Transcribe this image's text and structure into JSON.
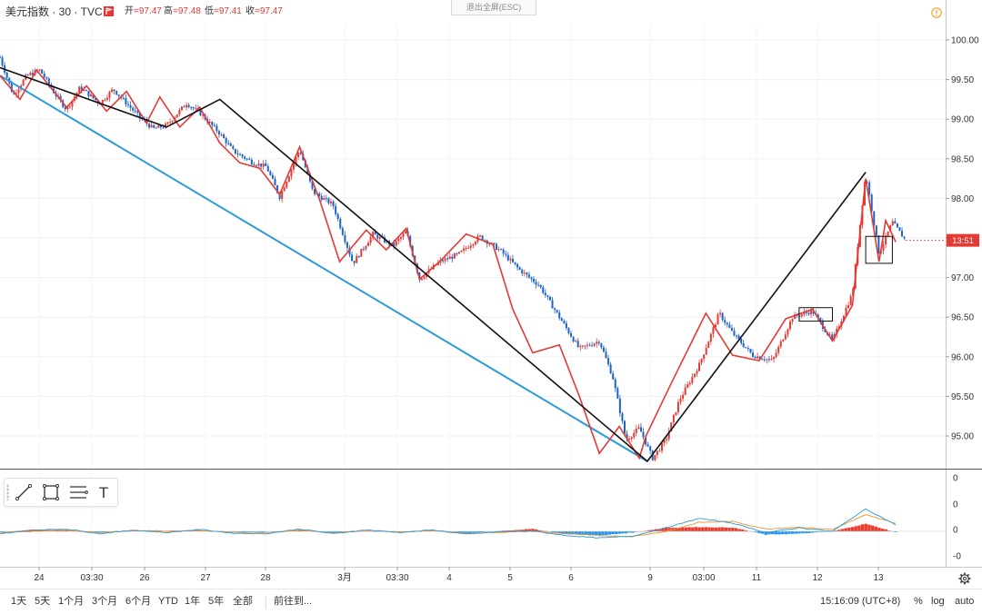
{
  "header": {
    "title": "美元指数 · 30 · TVC",
    "open_label": "开",
    "open_value": "=97.47",
    "high_label": "高",
    "high_value": "=97.48",
    "low_label": "低",
    "low_value": "=97.41",
    "close_label": "收",
    "close_value": "=97.47",
    "exit_fullscreen": "退出全屏(ESC)"
  },
  "colors": {
    "up": "#e53935",
    "down": "#1e63c6",
    "trend": "#111111",
    "channel": "#2a9ad8",
    "macd_pos": "#ef3b2c",
    "macd_neg": "#2196f3"
  },
  "price_label": "13:51",
  "chart_data": {
    "type": "line",
    "title": "",
    "x_ticks": [
      "24",
      "03:30",
      "26",
      "27",
      "28",
      "3月",
      "03:30",
      "4",
      "5",
      "6",
      "9",
      "03:00",
      "11",
      "12",
      "13"
    ],
    "y_ticks": [
      "100.00",
      "99.50",
      "99.00",
      "98.50",
      "98.00",
      "97.50",
      "97.00",
      "96.50",
      "96.00",
      "95.50",
      "95.00"
    ],
    "ylim": [
      94.6,
      100.3
    ],
    "price_series": {
      "x": [
        0,
        0.2,
        0.4,
        0.6,
        0.8,
        1.0,
        1.2,
        1.5,
        1.7,
        2.1,
        2.3,
        2.5,
        2.8,
        3.0,
        3.3,
        3.5,
        3.8,
        4.0,
        4.2,
        4.5,
        4.7,
        5.0,
        5.3,
        5.6,
        5.9,
        6.1,
        6.3,
        6.6,
        6.9,
        7.2,
        7.5,
        7.8,
        8.1,
        8.4,
        8.7,
        9.0,
        9.2,
        9.4,
        9.6,
        9.8,
        10.0,
        10.2,
        10.5,
        10.8,
        11.0,
        11.3,
        11.6,
        11.9,
        12.2,
        12.5,
        12.8,
        13.0,
        13.2,
        13.4,
        13.6
      ],
      "y": [
        99.78,
        99.3,
        99.55,
        99.62,
        99.35,
        99.12,
        99.4,
        99.2,
        99.38,
        99.02,
        98.88,
        98.92,
        99.2,
        99.08,
        98.82,
        98.6,
        98.45,
        98.4,
        98.02,
        98.62,
        98.08,
        97.92,
        97.18,
        97.55,
        97.4,
        97.58,
        96.98,
        97.2,
        97.3,
        97.52,
        97.35,
        97.1,
        96.9,
        96.5,
        96.1,
        96.2,
        95.75,
        94.95,
        95.1,
        94.72,
        94.95,
        95.45,
        95.9,
        96.55,
        96.3,
        96.02,
        95.95,
        96.5,
        96.58,
        96.2,
        96.8,
        98.32,
        97.3,
        97.7,
        97.47
      ]
    },
    "zigzag_red": {
      "x": [
        0.0,
        0.3,
        0.55,
        1.0,
        1.3,
        1.6,
        1.9,
        2.2,
        2.4,
        2.7,
        3.0,
        3.3,
        3.6,
        3.9,
        4.2,
        4.5,
        4.8,
        5.1,
        5.5,
        5.8,
        6.1,
        6.3,
        6.6,
        7.0,
        7.4,
        7.7,
        8.0,
        8.4,
        8.7,
        9.0,
        9.3,
        9.6,
        9.7,
        10.1,
        10.6,
        11.0,
        11.4,
        11.8,
        12.2,
        12.5,
        12.8,
        13.0,
        13.2,
        13.3,
        13.45
      ],
      "y": [
        99.55,
        99.25,
        99.62,
        99.15,
        99.42,
        99.1,
        99.35,
        98.95,
        99.28,
        98.9,
        99.15,
        98.7,
        98.45,
        98.38,
        98.05,
        98.65,
        97.98,
        97.2,
        97.6,
        97.35,
        97.62,
        96.98,
        97.2,
        97.55,
        97.42,
        96.6,
        96.05,
        96.15,
        95.5,
        94.78,
        95.12,
        94.72,
        95.0,
        95.7,
        96.55,
        96.02,
        95.95,
        96.48,
        96.6,
        96.2,
        96.65,
        98.25,
        97.2,
        97.72,
        97.45
      ]
    },
    "zigzag_black": {
      "x": [
        0.0,
        2.5,
        3.3,
        9.72,
        13.0
      ],
      "y": [
        99.65,
        98.9,
        99.25,
        94.68,
        98.33
      ]
    },
    "channel_line": {
      "x": [
        0.0,
        9.72
      ],
      "y": [
        99.55,
        94.68
      ]
    },
    "boxes": [
      {
        "x0": 12.0,
        "x1": 12.5,
        "y0": 96.45,
        "y1": 96.62
      },
      {
        "x0": 13.0,
        "x1": 13.4,
        "y0": 97.18,
        "y1": 97.52
      }
    ],
    "current_price": 97.47,
    "macd": {
      "y_ticks": [
        "0",
        "0",
        "0",
        "-0"
      ],
      "x": [
        0,
        0.5,
        1.0,
        1.5,
        2.0,
        2.5,
        3.0,
        3.5,
        4.0,
        4.5,
        5.0,
        5.5,
        6.0,
        6.5,
        7.0,
        7.5,
        8.0,
        8.5,
        9.0,
        9.5,
        10.0,
        10.5,
        11.0,
        11.5,
        12.0,
        12.5,
        13.0,
        13.5
      ],
      "hist": [
        -0.05,
        0.08,
        0.04,
        -0.06,
        0.05,
        0.03,
        0.04,
        -0.05,
        -0.03,
        0.06,
        -0.07,
        0.02,
        -0.04,
        0.04,
        -0.09,
        0.02,
        0.1,
        -0.12,
        -0.18,
        -0.05,
        0.15,
        0.18,
        0.16,
        -0.14,
        -0.1,
        0.0,
        0.32,
        -0.08
      ],
      "fast": [
        -0.1,
        0.05,
        0.1,
        -0.1,
        0.05,
        -0.05,
        0.08,
        -0.08,
        -0.1,
        0.1,
        -0.1,
        0.06,
        -0.05,
        0.06,
        -0.12,
        -0.02,
        0.02,
        -0.18,
        -0.28,
        -0.2,
        0.15,
        0.55,
        0.35,
        -0.05,
        0.15,
        0.0,
        0.95,
        0.2
      ],
      "slow": [
        -0.05,
        0.0,
        0.05,
        -0.05,
        0.03,
        0.0,
        0.04,
        -0.04,
        -0.07,
        0.05,
        -0.06,
        0.04,
        -0.03,
        0.03,
        -0.08,
        -0.04,
        0.0,
        -0.1,
        -0.18,
        -0.22,
        0.0,
        0.38,
        0.42,
        0.1,
        0.18,
        0.08,
        0.7,
        0.3
      ]
    }
  },
  "toolbar": {
    "line_tool": "line-tool",
    "rect_tool": "rect-tool",
    "fib_tool": "fib-tool",
    "text_tool": "T"
  },
  "bottom": {
    "ranges": [
      "1天",
      "5天",
      "1个月",
      "3个月",
      "6个月",
      "YTD",
      "1年",
      "5年",
      "全部"
    ],
    "goto": "前往到...",
    "clock": "15:16:09 (UTC+8)",
    "pct": "%",
    "log": "log",
    "auto": "auto"
  }
}
